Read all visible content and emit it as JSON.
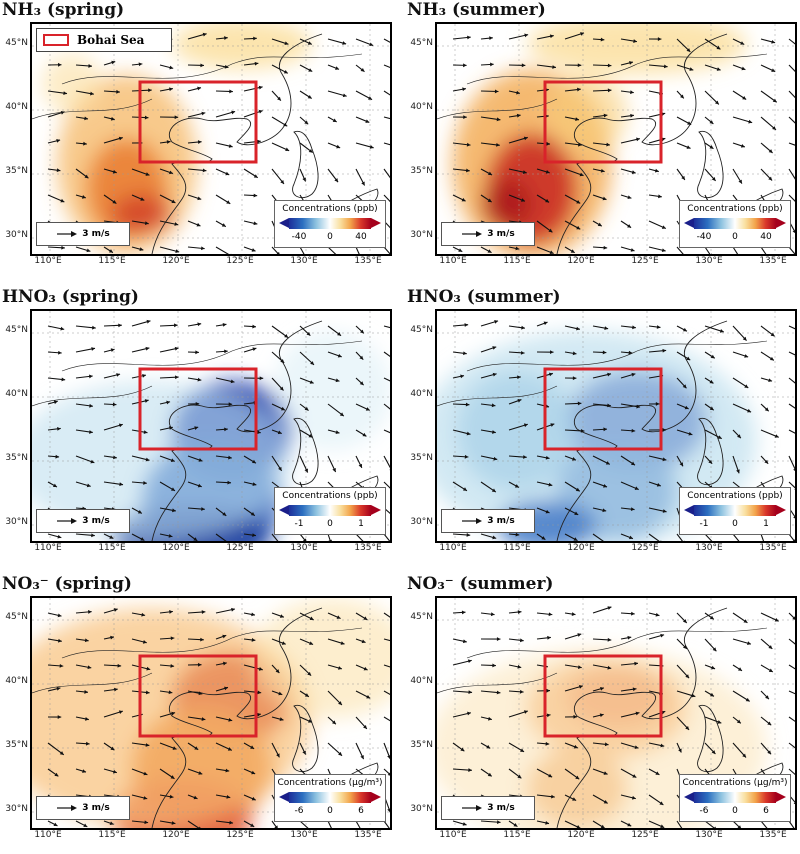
{
  "figure": {
    "legend_label": "Bohai Sea",
    "wind_ref": "3 m/s",
    "lat_labels": [
      "45°N",
      "40°N",
      "35°N",
      "30°N"
    ],
    "lon_labels": [
      "110°E",
      "115°E",
      "120°E",
      "125°E",
      "130°E",
      "135°E"
    ]
  },
  "panels": [
    {
      "id": "nh3-spring",
      "title": "NH₃ (spring)",
      "cb_title": "Concentrations (ppb)",
      "ticks": [
        "-40",
        "0",
        "40"
      ],
      "pattern": "nh3spring"
    },
    {
      "id": "nh3-summer",
      "title": "NH₃ (summer)",
      "cb_title": "Concentrations (ppb)",
      "ticks": [
        "-40",
        "0",
        "40"
      ],
      "pattern": "nh3summer"
    },
    {
      "id": "hno3-spring",
      "title": "HNO₃ (spring)",
      "cb_title": "Concentrations (ppb)",
      "ticks": [
        "-1",
        "0",
        "1"
      ],
      "pattern": "hno3spring"
    },
    {
      "id": "hno3-summer",
      "title": "HNO₃ (summer)",
      "cb_title": "Concentrations (ppb)",
      "ticks": [
        "-1",
        "0",
        "1"
      ],
      "pattern": "hno3summer"
    },
    {
      "id": "no3-spring",
      "title": "NO₃⁻ (spring)",
      "cb_title": "Concentrations (μg/m³)",
      "ticks": [
        "-6",
        "0",
        "6"
      ],
      "pattern": "no3spring"
    },
    {
      "id": "no3-summer",
      "title": "NO₃⁻ (summer)",
      "cb_title": "Concentrations (μg/m³)",
      "ticks": [
        "-6",
        "0",
        "6"
      ],
      "pattern": "no3summer"
    }
  ],
  "colors": {
    "box": "#d9232a",
    "warm": "#e8742a",
    "deep_warm": "#c8261e",
    "cool": "#1f3fae",
    "light_cool": "#bfe0ee"
  }
}
